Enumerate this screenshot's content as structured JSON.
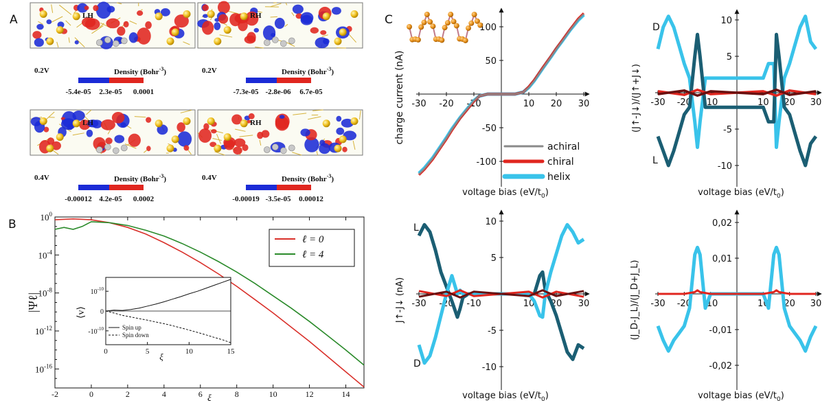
{
  "panel_letters": {
    "a": "A",
    "b": "B",
    "c": "C"
  },
  "density_panels": [
    {
      "handedness": "LH",
      "voltage": "0.2V",
      "title": "Density (Bohr",
      "exp": "-3",
      "ticks": [
        "-5.4e-05",
        "2.3e-05",
        "0.0001"
      ]
    },
    {
      "handedness": "RH",
      "voltage": "0.2V",
      "title": "Density (Bohr",
      "exp": "-3",
      "ticks": [
        "-7.3e-05",
        "-2.8e-06",
        "6.7e-05"
      ]
    },
    {
      "handedness": "LH",
      "voltage": "0.4V",
      "title": "Density (Bohr",
      "exp": "-3",
      "ticks": [
        "-0.00012",
        "4.2e-05",
        "0.0002"
      ]
    },
    {
      "handedness": "RH",
      "voltage": "0.4V",
      "title": "Density (Bohr",
      "exp": "-3",
      "ticks": [
        "-0.00019",
        "-3.5e-05",
        "0.00012"
      ]
    }
  ],
  "colors": {
    "red": "#e0261f",
    "blue": "#1b2bd6",
    "gray": "#8a8a8a",
    "cyan": "#39c3ea",
    "teal": "#1b5e73",
    "green": "#2a8a2a",
    "darkred": "#6a1010",
    "gold": "#f0c020"
  },
  "chart_data": [
    {
      "id": "B-main",
      "type": "line",
      "xlabel": "ξ",
      "ylabel": "|Ψℓ|",
      "log_y": true,
      "xlim": [
        -2,
        15
      ],
      "ylim_exp": [
        -18,
        0
      ],
      "x_ticks": [
        "-2",
        "0",
        "2",
        "4",
        "6",
        "8",
        "10",
        "12",
        "14"
      ],
      "y_ticks": [
        {
          "base": "10",
          "exp": "0",
          "value": 0
        },
        {
          "base": "10",
          "exp": "-4",
          "value": -4
        },
        {
          "base": "10",
          "exp": "-8",
          "value": -8
        },
        {
          "base": "10",
          "exp": "-12",
          "value": -12
        },
        {
          "base": "10",
          "exp": "-16",
          "value": -16
        }
      ],
      "legend": {
        "position": "top-right",
        "entries": [
          {
            "label": "ℓ = 0",
            "color": "#d9302a"
          },
          {
            "label": "ℓ = 4",
            "color": "#2a8a2a"
          }
        ]
      },
      "series": [
        {
          "name": "ℓ = 0",
          "x": [
            -2,
            -1,
            0,
            1,
            2,
            3,
            4,
            5,
            6,
            7,
            8,
            9,
            10,
            11,
            12,
            13,
            14,
            15
          ],
          "log10y": [
            -0.3,
            -0.2,
            -0.3,
            -0.6,
            -1.1,
            -1.8,
            -2.7,
            -3.7,
            -4.8,
            -6.0,
            -7.3,
            -8.7,
            -10.1,
            -11.6,
            -13.1,
            -14.7,
            -16.3,
            -17.9
          ]
        },
        {
          "name": "ℓ = 4",
          "x": [
            -2,
            -1.5,
            -1,
            -0.5,
            0,
            1,
            2,
            3,
            4,
            5,
            6,
            7,
            8,
            9,
            10,
            11,
            12,
            13,
            14,
            15
          ],
          "log10y": [
            -1.3,
            -1.1,
            -1.3,
            -1.0,
            -0.5,
            -0.6,
            -0.9,
            -1.4,
            -2.0,
            -2.8,
            -3.7,
            -4.7,
            -5.8,
            -7.0,
            -8.3,
            -9.6,
            -11.0,
            -12.5,
            -14.0,
            -15.6
          ]
        }
      ]
    },
    {
      "id": "B-inset",
      "type": "line",
      "xlabel": "ξ",
      "ylabel": "⟨v⟩",
      "xlim": [
        0,
        15
      ],
      "ylim": [
        -1.7,
        1.7
      ],
      "x_ticks": [
        "0",
        "5",
        "10",
        "15"
      ],
      "y_ticks": [
        {
          "label": "10",
          "exp": "-10",
          "value": 1
        },
        {
          "label": "0",
          "value": 0
        },
        {
          "label": "-10",
          "exp": "-10",
          "value": -1
        }
      ],
      "legend": {
        "position": "bottom-left",
        "entries": [
          {
            "label": "Spin up",
            "style": "solid"
          },
          {
            "label": "Spin down",
            "style": "dashed"
          }
        ]
      },
      "series": [
        {
          "name": "Spin up",
          "x": [
            0,
            1,
            2,
            3,
            4,
            5,
            6,
            7,
            8,
            9,
            10,
            11,
            12,
            13,
            14,
            15
          ],
          "y": [
            0,
            0.05,
            0.03,
            0.08,
            0.15,
            0.25,
            0.35,
            0.47,
            0.6,
            0.73,
            0.87,
            1.0,
            1.15,
            1.3,
            1.45,
            1.6
          ]
        },
        {
          "name": "Spin down",
          "x": [
            0,
            1,
            2,
            3,
            4,
            5,
            6,
            7,
            8,
            9,
            10,
            11,
            12,
            13,
            14,
            15
          ],
          "y": [
            0,
            -0.1,
            -0.22,
            -0.3,
            -0.38,
            -0.46,
            -0.55,
            -0.64,
            -0.74,
            -0.85,
            -0.96,
            -1.08,
            -1.2,
            -1.33,
            -1.45,
            -1.6
          ]
        }
      ]
    },
    {
      "id": "C-current",
      "type": "line",
      "xlabel": "voltage bias (eV/t",
      "xlabel_sub": "0",
      "ylabel": "charge current (nA)",
      "xlim": [
        -30,
        30
      ],
      "ylim": [
        -125,
        125
      ],
      "x_ticks": [
        "-30",
        "-20",
        "-10",
        "10",
        "20",
        "30"
      ],
      "y_ticks": [
        "100",
        "50",
        "-50",
        "-100"
      ],
      "legend": {
        "position": "bottom-right",
        "entries": [
          {
            "label": "achiral",
            "color": "#8a8a8a"
          },
          {
            "label": "chiral",
            "color": "#e0261f"
          },
          {
            "label": "helix",
            "color": "#39c3ea"
          }
        ]
      },
      "series": [
        {
          "name": "helix",
          "x": [
            -30,
            -28,
            -25,
            -22,
            -20,
            -18,
            -15,
            -12,
            -10,
            -8,
            -5,
            0,
            5,
            8,
            10,
            12,
            15,
            18,
            20,
            22,
            25,
            28,
            30
          ],
          "y": [
            -118,
            -110,
            -95,
            -77,
            -65,
            -52,
            -35,
            -20,
            -10,
            -3,
            0,
            0,
            0,
            3,
            10,
            20,
            38,
            55,
            67,
            78,
            95,
            110,
            118
          ]
        },
        {
          "name": "chiral",
          "x": [
            -30,
            -28,
            -25,
            -22,
            -20,
            -18,
            -15,
            -12,
            -10,
            -8,
            -5,
            0,
            5,
            8,
            10,
            12,
            15,
            18,
            20,
            22,
            25,
            28,
            30
          ],
          "y": [
            -120,
            -112,
            -97,
            -79,
            -67,
            -54,
            -36,
            -21,
            -11,
            -3,
            0,
            0,
            0,
            3,
            11,
            21,
            39,
            56,
            68,
            79,
            96,
            112,
            120
          ]
        },
        {
          "name": "achiral",
          "x": [
            -30,
            -28,
            -25,
            -22,
            -20,
            -18,
            -15,
            -12,
            -10,
            -8,
            -5,
            0,
            5,
            8,
            10,
            12,
            15,
            18,
            20,
            22,
            25,
            28,
            30
          ],
          "y": [
            -119,
            -111,
            -96,
            -78,
            -66,
            -53,
            -35,
            -20,
            -10,
            -3,
            0,
            0,
            0,
            3,
            10,
            20,
            38,
            55,
            67,
            78,
            95,
            111,
            119
          ]
        }
      ]
    },
    {
      "id": "C-spin-polarization",
      "type": "line",
      "xlabel": "voltage bias (eV/t",
      "xlabel_sub": "0",
      "ylabel": "(J↑-J↓)/(J↑+J↓)",
      "xlim": [
        -30,
        30
      ],
      "ylim": [
        -11,
        11
      ],
      "x_ticks": [
        "-30",
        "-20",
        "-10",
        "10",
        "20",
        "30"
      ],
      "y_ticks": [
        "10",
        "5",
        "-5",
        "-10"
      ],
      "annotations": [
        {
          "text": "D",
          "side": "top-left"
        },
        {
          "text": "L",
          "side": "bottom-left"
        }
      ],
      "series": [
        {
          "name": "D",
          "color": "#39c3ea",
          "x": [
            -30,
            -28,
            -26,
            -24,
            -22,
            -20,
            -18,
            -16,
            -15,
            -14,
            -12,
            -10,
            -5,
            0,
            5,
            10,
            12,
            14,
            15,
            16,
            18,
            20,
            22,
            24,
            26,
            28,
            30
          ],
          "y": [
            6,
            9,
            10.5,
            9,
            6.5,
            4,
            2,
            -4,
            -7.5,
            -4,
            2,
            2,
            2,
            2,
            2,
            2,
            4,
            4,
            -7.5,
            -4,
            2,
            4,
            6.5,
            9,
            10.5,
            7,
            6
          ]
        },
        {
          "name": "L",
          "color": "#1b5e73",
          "x": [
            -30,
            -28,
            -26,
            -24,
            -22,
            -20,
            -18,
            -16,
            -15,
            -14,
            -12,
            -10,
            -5,
            0,
            5,
            10,
            12,
            14,
            15,
            16,
            18,
            20,
            22,
            24,
            26,
            28,
            30
          ],
          "y": [
            -6,
            -8,
            -10,
            -8,
            -5.5,
            -3,
            -2,
            5,
            8,
            5,
            -2,
            -2,
            -2,
            -2,
            -2,
            -2,
            -4,
            -4,
            8,
            5,
            -2,
            -3,
            -5.5,
            -8,
            -10,
            -7,
            -6
          ]
        },
        {
          "name": "chiral",
          "color": "#e0261f",
          "x": [
            -30,
            -20,
            -15,
            -10,
            0,
            10,
            15,
            20,
            30
          ],
          "y": [
            0.2,
            -0.3,
            0.4,
            -0.2,
            0,
            0.2,
            -0.4,
            0.3,
            -0.2
          ]
        },
        {
          "name": "achiral",
          "color": "#6a1010",
          "x": [
            -30,
            -20,
            -15,
            -10,
            0,
            10,
            15,
            20,
            30
          ],
          "y": [
            -0.2,
            0.3,
            -0.4,
            0.2,
            0,
            -0.2,
            0.4,
            -0.3,
            0.2
          ]
        }
      ]
    },
    {
      "id": "C-spin-current",
      "type": "line",
      "xlabel": "voltage bias (eV/t",
      "xlabel_sub": "0",
      "ylabel": "J↑-J↓ (nA)",
      "xlim": [
        -30,
        30
      ],
      "ylim": [
        -11,
        11
      ],
      "x_ticks": [
        "-30",
        "-20",
        "-10",
        "10",
        "20",
        "30"
      ],
      "y_ticks": [
        "10",
        "5",
        "-5",
        "-10"
      ],
      "annotations": [
        {
          "text": "L",
          "side": "top-left"
        },
        {
          "text": "D",
          "side": "bottom-left"
        }
      ],
      "series": [
        {
          "name": "L",
          "color": "#1b5e73",
          "x": [
            -30,
            -28,
            -26,
            -24,
            -22,
            -20,
            -18,
            -16,
            -15,
            -14,
            -12,
            -10,
            -5,
            0,
            5,
            10,
            12,
            14,
            15,
            16,
            18,
            20,
            22,
            24,
            26,
            28,
            30
          ],
          "y": [
            8,
            9.5,
            8.5,
            6,
            3,
            1,
            -1,
            -3.2,
            -2,
            -0.5,
            0,
            0,
            0,
            0,
            0,
            0,
            0,
            2.5,
            3,
            0.5,
            -1,
            -3,
            -5.5,
            -8,
            -9,
            -7,
            -7.5
          ]
        },
        {
          "name": "D",
          "color": "#39c3ea",
          "x": [
            -30,
            -28,
            -26,
            -24,
            -22,
            -20,
            -18,
            -16,
            -15,
            -14,
            -12,
            -10,
            -5,
            0,
            5,
            10,
            12,
            14,
            15,
            16,
            18,
            20,
            22,
            24,
            26,
            28,
            30
          ],
          "y": [
            -7,
            -9.5,
            -8.5,
            -6,
            -3,
            0,
            2.5,
            0,
            0.5,
            0,
            0,
            0,
            0,
            0,
            0,
            0,
            -1,
            -3,
            -3.2,
            0,
            3,
            5.5,
            8,
            9.5,
            8.5,
            7,
            7.5
          ]
        },
        {
          "name": "chiral",
          "color": "#e0261f",
          "x": [
            -30,
            -20,
            -15,
            -10,
            0,
            10,
            15,
            20,
            30
          ],
          "y": [
            0.4,
            -0.3,
            0.5,
            -0.3,
            0,
            0.3,
            -0.5,
            0.3,
            -0.4
          ]
        },
        {
          "name": "achiral",
          "color": "#6a1010",
          "x": [
            -30,
            -20,
            -15,
            -10,
            0,
            10,
            15,
            20,
            30
          ],
          "y": [
            -0.4,
            0.3,
            -0.5,
            0.3,
            0,
            -0.3,
            0.5,
            -0.3,
            0.4
          ]
        }
      ]
    },
    {
      "id": "C-chirality-polarization",
      "type": "line",
      "xlabel": "voltage bias (eV/t",
      "xlabel_sub": "0",
      "ylabel": "(J_D-J_L)/(J_D+J_L)",
      "xlim": [
        -30,
        30
      ],
      "ylim": [
        -0.022,
        0.022
      ],
      "x_ticks": [
        "-30",
        "-20",
        "-10",
        "10",
        "20",
        "30"
      ],
      "y_ticks": [
        "0,02",
        "0,01",
        "-0,01",
        "-0,02"
      ],
      "series": [
        {
          "name": "helix",
          "color": "#39c3ea",
          "x": [
            -30,
            -28,
            -26,
            -24,
            -22,
            -20,
            -18,
            -16,
            -15,
            -14,
            -12,
            -10,
            -5,
            0,
            5,
            10,
            12,
            14,
            15,
            16,
            18,
            20,
            22,
            24,
            26,
            28,
            30
          ],
          "y": [
            -0.009,
            -0.013,
            -0.016,
            -0.013,
            -0.011,
            -0.009,
            -0.004,
            0.011,
            0.013,
            0.011,
            -0.004,
            0,
            0,
            0,
            0,
            0,
            -0.004,
            0.011,
            0.013,
            0.011,
            -0.004,
            -0.009,
            -0.011,
            -0.013,
            -0.016,
            -0.012,
            -0.009
          ]
        },
        {
          "name": "chiral",
          "color": "#e0261f",
          "x": [
            -30,
            -20,
            -16,
            -15,
            -14,
            -10,
            0,
            10,
            14,
            15,
            16,
            20,
            30
          ],
          "y": [
            0,
            0,
            0.0005,
            0.001,
            0.0005,
            0,
            0,
            0,
            0.0005,
            0.001,
            0.0005,
            0,
            0
          ]
        }
      ]
    }
  ]
}
